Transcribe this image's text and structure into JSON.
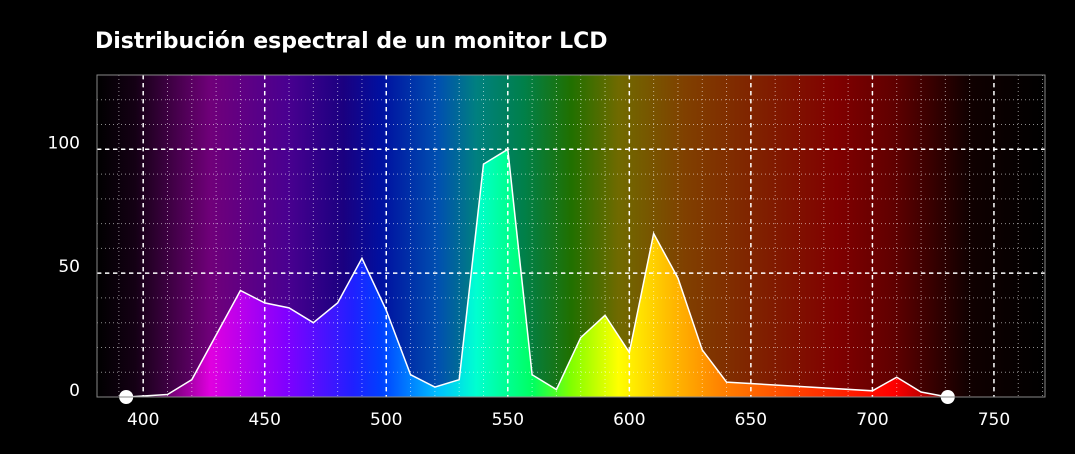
{
  "chart_data": {
    "type": "area",
    "title": "Distribución espectral de un monitor LCD",
    "x": [
      393,
      410,
      420,
      440,
      450,
      460,
      470,
      480,
      490,
      500,
      510,
      520,
      530,
      540,
      550,
      560,
      570,
      580,
      590,
      600,
      610,
      620,
      630,
      640,
      700,
      710,
      720,
      731
    ],
    "values": [
      0,
      1,
      7,
      43,
      38,
      36,
      30,
      38,
      56,
      35,
      9,
      4,
      7,
      94,
      100,
      9,
      3,
      24,
      33,
      18,
      66,
      48,
      19,
      6,
      2.5,
      8,
      2,
      0
    ],
    "color": "#ffffff",
    "xlim": [
      381,
      771
    ],
    "ylim": [
      0,
      130
    ],
    "xticks": [
      400,
      450,
      500,
      550,
      600,
      650,
      700,
      750
    ],
    "yticks": [
      0,
      50,
      100
    ],
    "grid": true
  }
}
